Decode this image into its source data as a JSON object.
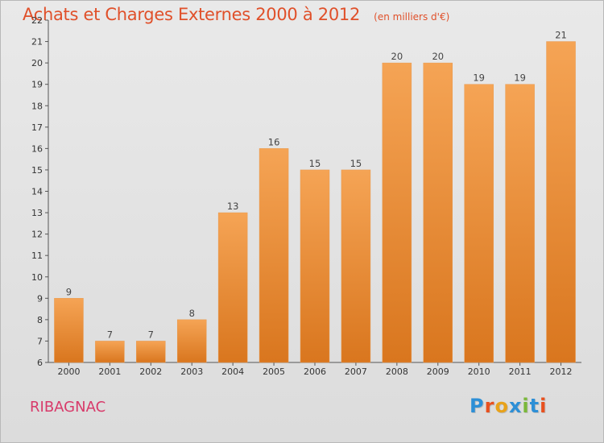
{
  "header": {
    "title": "Achats et Charges Externes 2000 à 2012",
    "subtitle": "(en milliers d'€)"
  },
  "footer": {
    "town": "RIBAGNAC",
    "brand": "Proxiti"
  },
  "colors": {
    "bar_top": "#f5a455",
    "bar_bottom": "#d9761e",
    "title": "#e0502a",
    "town": "#d83a6a",
    "logo_letters": [
      "#2d8fd6",
      "#e8501e",
      "#e8a21a",
      "#2d8fd6",
      "#7ab83a",
      "#2d8fd6",
      "#e8501e"
    ]
  },
  "chart_data": {
    "type": "bar",
    "title": "Achats et Charges Externes 2000 à 2012",
    "subtitle": "(en milliers d'€)",
    "categories": [
      "2000",
      "2001",
      "2002",
      "2003",
      "2004",
      "2005",
      "2006",
      "2007",
      "2008",
      "2009",
      "2010",
      "2011",
      "2012"
    ],
    "values": [
      9,
      7,
      7,
      8,
      13,
      16,
      15,
      15,
      20,
      20,
      19,
      19,
      21
    ],
    "ylim": [
      6,
      22
    ],
    "yticks": [
      6,
      7,
      8,
      9,
      10,
      11,
      12,
      13,
      14,
      15,
      16,
      17,
      18,
      19,
      20,
      21,
      22
    ],
    "grid": false,
    "legend": "none",
    "xlabel": "",
    "ylabel": ""
  }
}
